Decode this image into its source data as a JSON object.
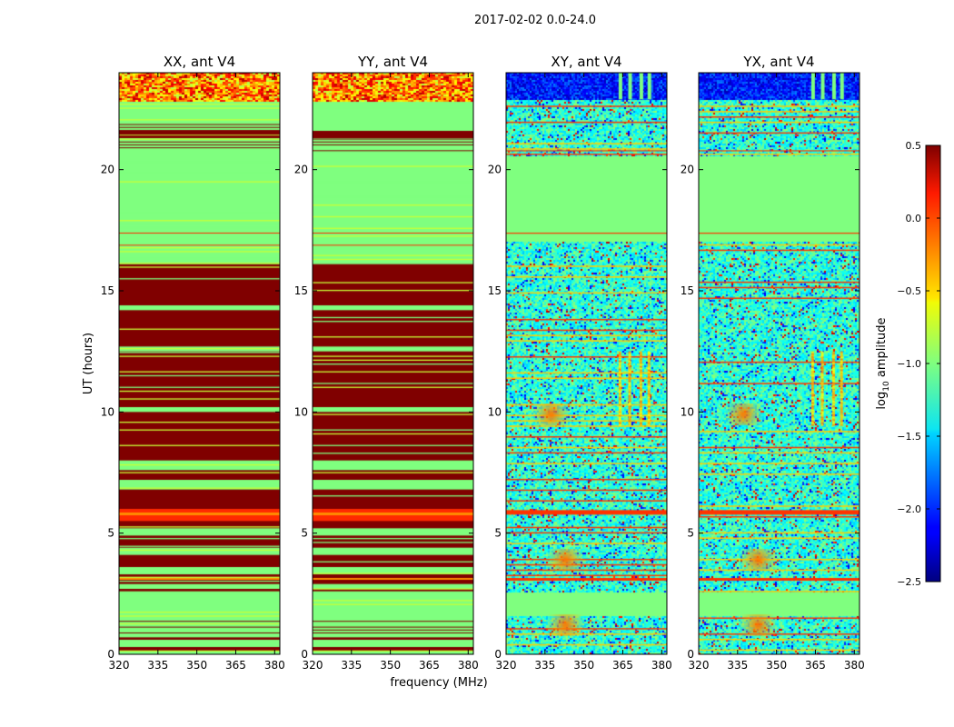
{
  "chart_data": {
    "type": "heatmap",
    "suptitle": "2017-02-02 0.0-24.0",
    "xlabel": "frequency (MHz)",
    "ylabel": "UT (hours)",
    "xlim": [
      320,
      382
    ],
    "ylim": [
      0,
      24
    ],
    "xticks": [
      320,
      335,
      350,
      365,
      380
    ],
    "yticks": [
      0,
      5,
      10,
      15,
      20
    ],
    "panels": [
      {
        "title": "XX, ant V4",
        "kind": "auto"
      },
      {
        "title": "YY, ant V4",
        "kind": "auto"
      },
      {
        "title": "XY, ant V4",
        "kind": "cross"
      },
      {
        "title": "YX, ant V4",
        "kind": "cross"
      }
    ],
    "colorbar": {
      "label_main": "log",
      "label_sub": "10",
      "label_rest": " amplitude",
      "colormap": "jet",
      "range": [
        -2.5,
        0.5
      ],
      "ticks": [
        0.5,
        0.0,
        -0.5,
        -1.0,
        -1.5,
        -2.0,
        -2.5
      ],
      "tick_labels": [
        "0.5",
        "0.0",
        "−0.5",
        "−1.0",
        "−1.5",
        "−2.0",
        "−2.5"
      ]
    }
  }
}
